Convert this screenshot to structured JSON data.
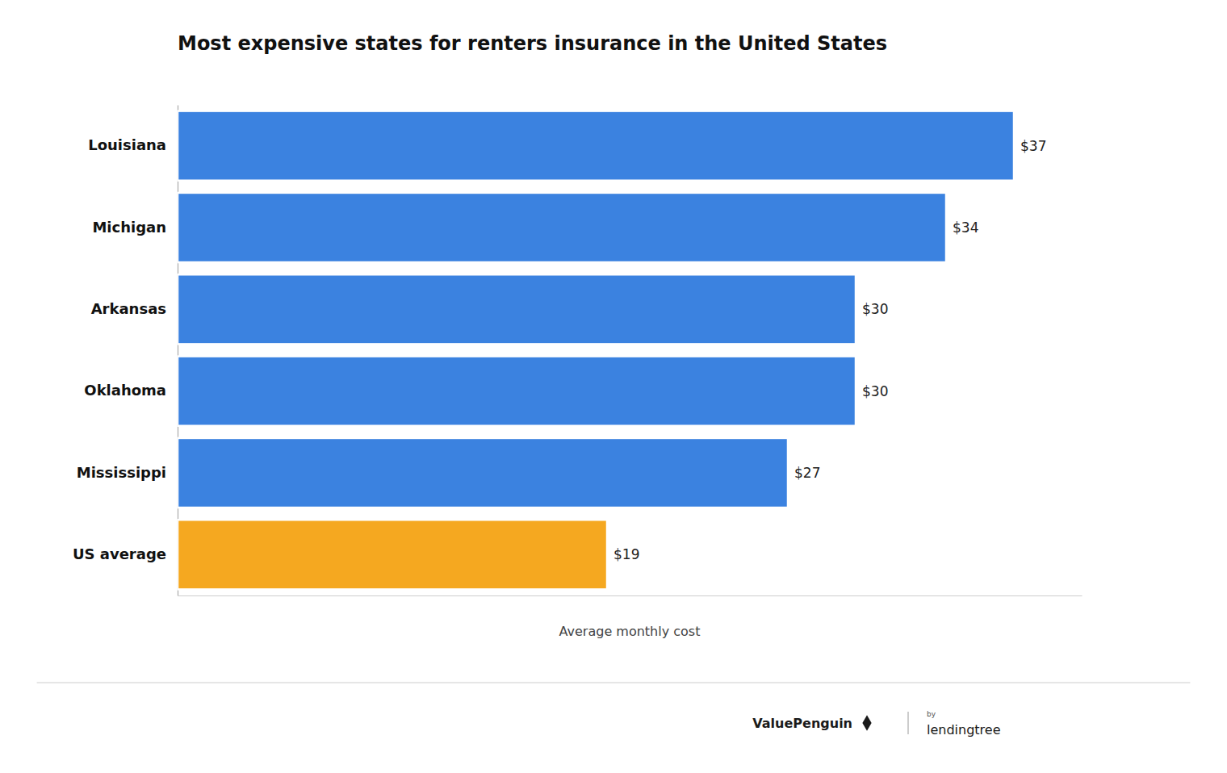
{
  "chart_data": {
    "type": "bar",
    "orientation": "horizontal",
    "title": "Most expensive states for renters insurance in the United States",
    "categories": [
      "US average",
      "Mississippi",
      "Oklahoma",
      "Arkansas",
      "Michigan",
      "Louisiana"
    ],
    "values": [
      19,
      27,
      30,
      30,
      34,
      37
    ],
    "value_labels": [
      "$19",
      "$27",
      "$30",
      "$30",
      "$34",
      "$37"
    ],
    "colors": [
      "#F5A820",
      "#3B82E0",
      "#3B82E0",
      "#3B82E0",
      "#3B82E0",
      "#3B82E0"
    ],
    "data_labels": true,
    "xlabel": "Average monthly cost",
    "xlim": [
      0,
      40
    ],
    "tick_labels": "y",
    "grid": false,
    "annotations": [
      "ValuePenguin",
      "by",
      "lendingtree"
    ]
  }
}
